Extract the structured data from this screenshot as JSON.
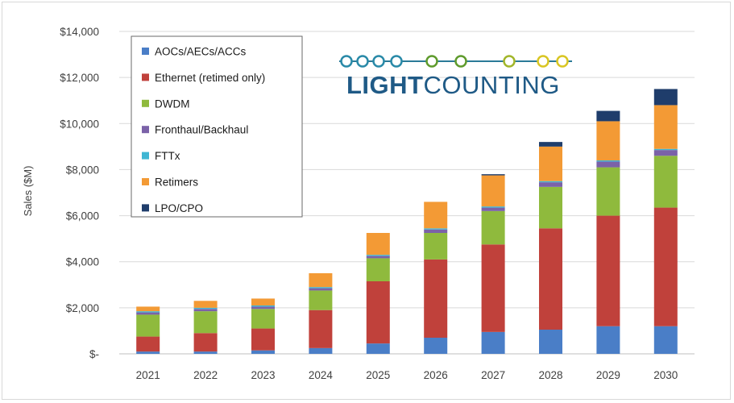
{
  "logo": {
    "text_bold": "LIGHT",
    "text_regular": "COUNTING",
    "circle_colors": [
      "#2a8aa8",
      "#2a8aa8",
      "#2a8aa8",
      "#2a8aa8",
      "#5f9b2d",
      "#5f9b2d",
      "#a2b62a",
      "#d9c623",
      "#d9c623"
    ]
  },
  "chart_data": {
    "type": "bar",
    "stacked": true,
    "title": "",
    "xlabel": "",
    "ylabel": "Sales ($M)",
    "ylim": [
      0,
      14000
    ],
    "yticks": [
      {
        "value": 0,
        "label": "$-"
      },
      {
        "value": 2000,
        "label": "$2,000"
      },
      {
        "value": 4000,
        "label": "$4,000"
      },
      {
        "value": 6000,
        "label": "$6,000"
      },
      {
        "value": 8000,
        "label": "$8,000"
      },
      {
        "value": 10000,
        "label": "$10,000"
      },
      {
        "value": 12000,
        "label": "$12,000"
      },
      {
        "value": 14000,
        "label": "$14,000"
      }
    ],
    "grid": true,
    "legend_position": "top-left",
    "categories": [
      "2021",
      "2022",
      "2023",
      "2024",
      "2025",
      "2026",
      "2027",
      "2028",
      "2029",
      "2030"
    ],
    "series": [
      {
        "name": "AOCs/AECs/ACCs",
        "color": "#4a7ec7",
        "values": [
          100,
          100,
          150,
          250,
          450,
          700,
          950,
          1050,
          1200,
          1200
        ]
      },
      {
        "name": "Ethernet (retimed only)",
        "color": "#c0413b",
        "values": [
          650,
          800,
          950,
          1650,
          2700,
          3400,
          3800,
          4400,
          4800,
          5150
        ]
      },
      {
        "name": "DWDM",
        "color": "#8fba3d",
        "values": [
          950,
          950,
          850,
          850,
          1000,
          1150,
          1450,
          1800,
          2100,
          2250
        ]
      },
      {
        "name": "Fronthaul/Backhaul",
        "color": "#7b62a8",
        "values": [
          100,
          100,
          100,
          100,
          100,
          150,
          150,
          200,
          250,
          250
        ]
      },
      {
        "name": "FTTx",
        "color": "#3fb6d3",
        "values": [
          50,
          50,
          50,
          50,
          50,
          50,
          50,
          50,
          50,
          50
        ]
      },
      {
        "name": "Retimers",
        "color": "#f39a35",
        "values": [
          200,
          300,
          300,
          600,
          950,
          1150,
          1350,
          1500,
          1700,
          1900
        ]
      },
      {
        "name": "LPO/CPO",
        "color": "#1f3d6b",
        "values": [
          0,
          0,
          0,
          0,
          0,
          0,
          50,
          200,
          450,
          700
        ]
      }
    ]
  }
}
